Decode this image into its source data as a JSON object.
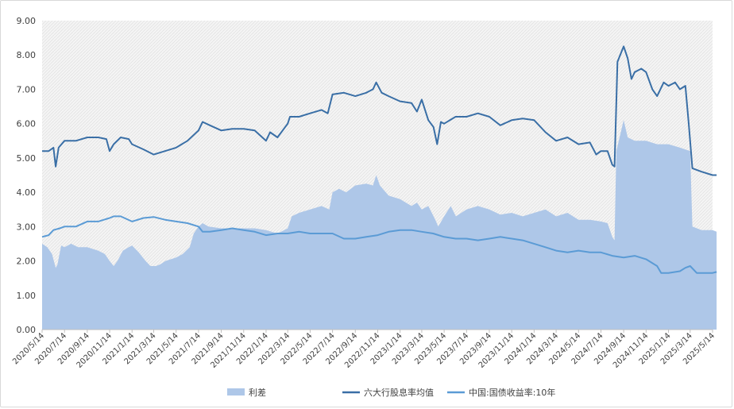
{
  "chart_data": {
    "type": "area+line",
    "title": "",
    "xlabel": "",
    "ylabel": "",
    "ylim": [
      0,
      9
    ],
    "yticks": [
      "0.00",
      "1.00",
      "2.00",
      "3.00",
      "4.00",
      "5.00",
      "6.00",
      "7.00",
      "8.00",
      "9.00"
    ],
    "xticks": [
      "2020/5/14",
      "2020/7/14",
      "2020/9/14",
      "2020/11/14",
      "2021/1/14",
      "2021/3/14",
      "2021/5/14",
      "2021/7/14",
      "2021/9/14",
      "2021/11/14",
      "2022/1/14",
      "2022/3/14",
      "2022/5/14",
      "2022/7/14",
      "2022/9/14",
      "2022/11/14",
      "2023/1/14",
      "2023/3/14",
      "2023/5/14",
      "2023/7/14",
      "2023/9/14",
      "2023/11/14",
      "2024/1/14",
      "2024/3/14",
      "2024/5/14",
      "2024/7/14",
      "2024/9/14",
      "2024/11/14",
      "2025/1/14",
      "2025/3/14",
      "2025/5/14"
    ],
    "grid": false,
    "plot_background": "hatched light gray",
    "legend_position": "bottom",
    "series": [
      {
        "name": "利差",
        "kind": "area",
        "color": "#aec7e8",
        "points": [
          [
            "2020/5/14",
            2.5
          ],
          [
            "2020/5/28",
            2.4
          ],
          [
            "2020/6/10",
            2.2
          ],
          [
            "2020/6/20",
            1.8
          ],
          [
            "2020/6/25",
            1.9
          ],
          [
            "2020/7/5",
            2.45
          ],
          [
            "2020/7/14",
            2.4
          ],
          [
            "2020/8/1",
            2.5
          ],
          [
            "2020/8/20",
            2.4
          ],
          [
            "2020/9/14",
            2.4
          ],
          [
            "2020/10/14",
            2.3
          ],
          [
            "2020/11/1",
            2.2
          ],
          [
            "2020/11/14",
            2.0
          ],
          [
            "2020/11/25",
            1.85
          ],
          [
            "2020/12/5",
            2.0
          ],
          [
            "2020/12/20",
            2.3
          ],
          [
            "2021/1/5",
            2.4
          ],
          [
            "2021/1/14",
            2.45
          ],
          [
            "2021/2/1",
            2.25
          ],
          [
            "2021/2/20",
            2.0
          ],
          [
            "2021/3/5",
            1.85
          ],
          [
            "2021/3/20",
            1.85
          ],
          [
            "2021/4/1",
            1.9
          ],
          [
            "2021/4/15",
            2.0
          ],
          [
            "2021/5/14",
            2.1
          ],
          [
            "2021/6/1",
            2.2
          ],
          [
            "2021/6/20",
            2.4
          ],
          [
            "2021/7/1",
            2.8
          ],
          [
            "2021/7/14",
            3.0
          ],
          [
            "2021/7/25",
            3.1
          ],
          [
            "2021/8/10",
            3.0
          ],
          [
            "2021/9/14",
            2.95
          ],
          [
            "2021/10/14",
            2.95
          ],
          [
            "2021/11/14",
            2.95
          ],
          [
            "2021/12/14",
            2.95
          ],
          [
            "2022/1/14",
            2.9
          ],
          [
            "2022/2/14",
            2.8
          ],
          [
            "2022/3/14",
            2.95
          ],
          [
            "2022/3/25",
            3.3
          ],
          [
            "2022/4/14",
            3.4
          ],
          [
            "2022/5/14",
            3.5
          ],
          [
            "2022/6/14",
            3.6
          ],
          [
            "2022/7/5",
            3.5
          ],
          [
            "2022/7/14",
            4.0
          ],
          [
            "2022/8/1",
            4.1
          ],
          [
            "2022/8/20",
            4.0
          ],
          [
            "2022/9/14",
            4.2
          ],
          [
            "2022/10/14",
            4.25
          ],
          [
            "2022/11/1",
            4.2
          ],
          [
            "2022/11/10",
            4.5
          ],
          [
            "2022/11/20",
            4.2
          ],
          [
            "2022/12/14",
            3.9
          ],
          [
            "2023/1/14",
            3.8
          ],
          [
            "2023/2/14",
            3.6
          ],
          [
            "2023/3/1",
            3.7
          ],
          [
            "2023/3/14",
            3.5
          ],
          [
            "2023/4/1",
            3.6
          ],
          [
            "2023/4/20",
            3.2
          ],
          [
            "2023/4/28",
            3.0
          ],
          [
            "2023/5/14",
            3.3
          ],
          [
            "2023/6/1",
            3.6
          ],
          [
            "2023/6/15",
            3.3
          ],
          [
            "2023/7/14",
            3.5
          ],
          [
            "2023/8/14",
            3.6
          ],
          [
            "2023/9/14",
            3.5
          ],
          [
            "2023/10/14",
            3.35
          ],
          [
            "2023/11/14",
            3.4
          ],
          [
            "2023/12/14",
            3.3
          ],
          [
            "2024/1/14",
            3.4
          ],
          [
            "2024/2/14",
            3.5
          ],
          [
            "2024/3/14",
            3.3
          ],
          [
            "2024/4/14",
            3.4
          ],
          [
            "2024/5/14",
            3.2
          ],
          [
            "2024/6/14",
            3.2
          ],
          [
            "2024/7/14",
            3.15
          ],
          [
            "2024/8/1",
            3.1
          ],
          [
            "2024/8/14",
            2.7
          ],
          [
            "2024/8/20",
            2.6
          ],
          [
            "2024/8/25",
            5.2
          ],
          [
            "2024/9/14",
            6.1
          ],
          [
            "2024/9/25",
            5.6
          ],
          [
            "2024/10/14",
            5.5
          ],
          [
            "2024/11/14",
            5.5
          ],
          [
            "2024/12/14",
            5.4
          ],
          [
            "2025/1/14",
            5.4
          ],
          [
            "2025/2/14",
            5.3
          ],
          [
            "2025/3/14",
            5.2
          ],
          [
            "2025/3/20",
            3.0
          ],
          [
            "2025/4/14",
            2.9
          ],
          [
            "2025/5/14",
            2.9
          ],
          [
            "2025/5/25",
            2.85
          ]
        ]
      },
      {
        "name": "六大行股息率均值",
        "kind": "line",
        "color": "#3a6fa6",
        "points": [
          [
            "2020/5/14",
            5.2
          ],
          [
            "2020/6/1",
            5.2
          ],
          [
            "2020/6/14",
            5.3
          ],
          [
            "2020/6/20",
            4.75
          ],
          [
            "2020/6/28",
            5.3
          ],
          [
            "2020/7/14",
            5.5
          ],
          [
            "2020/8/14",
            5.5
          ],
          [
            "2020/9/14",
            5.6
          ],
          [
            "2020/10/14",
            5.6
          ],
          [
            "2020/11/5",
            5.55
          ],
          [
            "2020/11/14",
            5.2
          ],
          [
            "2020/11/25",
            5.4
          ],
          [
            "2020/12/14",
            5.6
          ],
          [
            "2021/1/5",
            5.55
          ],
          [
            "2021/1/14",
            5.4
          ],
          [
            "2021/2/14",
            5.25
          ],
          [
            "2021/3/14",
            5.1
          ],
          [
            "2021/4/14",
            5.2
          ],
          [
            "2021/5/14",
            5.3
          ],
          [
            "2021/6/14",
            5.5
          ],
          [
            "2021/7/14",
            5.8
          ],
          [
            "2021/7/25",
            6.05
          ],
          [
            "2021/8/14",
            5.95
          ],
          [
            "2021/9/14",
            5.8
          ],
          [
            "2021/10/14",
            5.85
          ],
          [
            "2021/11/14",
            5.85
          ],
          [
            "2021/12/14",
            5.8
          ],
          [
            "2022/1/14",
            5.5
          ],
          [
            "2022/1/25",
            5.75
          ],
          [
            "2022/2/14",
            5.6
          ],
          [
            "2022/3/14",
            6.0
          ],
          [
            "2022/3/20",
            6.2
          ],
          [
            "2022/4/14",
            6.2
          ],
          [
            "2022/5/14",
            6.3
          ],
          [
            "2022/6/14",
            6.4
          ],
          [
            "2022/7/1",
            6.3
          ],
          [
            "2022/7/14",
            6.85
          ],
          [
            "2022/8/14",
            6.9
          ],
          [
            "2022/9/14",
            6.8
          ],
          [
            "2022/10/14",
            6.9
          ],
          [
            "2022/11/1",
            7.0
          ],
          [
            "2022/11/10",
            7.2
          ],
          [
            "2022/11/25",
            6.9
          ],
          [
            "2022/12/14",
            6.8
          ],
          [
            "2023/1/14",
            6.65
          ],
          [
            "2023/2/14",
            6.6
          ],
          [
            "2023/3/1",
            6.35
          ],
          [
            "2023/3/14",
            6.7
          ],
          [
            "2023/4/1",
            6.1
          ],
          [
            "2023/4/15",
            5.9
          ],
          [
            "2023/4/25",
            5.4
          ],
          [
            "2023/5/5",
            6.05
          ],
          [
            "2023/5/14",
            6.0
          ],
          [
            "2023/6/14",
            6.2
          ],
          [
            "2023/7/14",
            6.2
          ],
          [
            "2023/8/14",
            6.3
          ],
          [
            "2023/9/14",
            6.2
          ],
          [
            "2023/10/14",
            5.95
          ],
          [
            "2023/11/14",
            6.1
          ],
          [
            "2023/12/14",
            6.15
          ],
          [
            "2024/1/14",
            6.1
          ],
          [
            "2024/2/14",
            5.75
          ],
          [
            "2024/3/14",
            5.5
          ],
          [
            "2024/4/14",
            5.6
          ],
          [
            "2024/5/14",
            5.4
          ],
          [
            "2024/6/14",
            5.45
          ],
          [
            "2024/7/1",
            5.1
          ],
          [
            "2024/7/14",
            5.2
          ],
          [
            "2024/8/1",
            5.2
          ],
          [
            "2024/8/14",
            4.8
          ],
          [
            "2024/8/20",
            4.75
          ],
          [
            "2024/8/28",
            7.8
          ],
          [
            "2024/9/14",
            8.25
          ],
          [
            "2024/9/25",
            7.9
          ],
          [
            "2024/10/5",
            7.3
          ],
          [
            "2024/10/14",
            7.5
          ],
          [
            "2024/11/1",
            7.6
          ],
          [
            "2024/11/14",
            7.5
          ],
          [
            "2024/12/1",
            7.0
          ],
          [
            "2024/12/14",
            6.8
          ],
          [
            "2025/1/1",
            7.2
          ],
          [
            "2025/1/14",
            7.1
          ],
          [
            "2025/2/1",
            7.2
          ],
          [
            "2025/2/14",
            7.0
          ],
          [
            "2025/3/1",
            7.1
          ],
          [
            "2025/3/10",
            6.0
          ],
          [
            "2025/3/20",
            4.7
          ],
          [
            "2025/4/14",
            4.6
          ],
          [
            "2025/5/14",
            4.5
          ],
          [
            "2025/5/25",
            4.5
          ]
        ]
      },
      {
        "name": "中国:国债收益率:10年",
        "kind": "line",
        "color": "#5b9bd5",
        "points": [
          [
            "2020/5/14",
            2.7
          ],
          [
            "2020/6/1",
            2.75
          ],
          [
            "2020/6/14",
            2.9
          ],
          [
            "2020/7/1",
            2.95
          ],
          [
            "2020/7/14",
            3.0
          ],
          [
            "2020/8/14",
            3.0
          ],
          [
            "2020/9/14",
            3.15
          ],
          [
            "2020/10/14",
            3.15
          ],
          [
            "2020/11/14",
            3.25
          ],
          [
            "2020/11/25",
            3.3
          ],
          [
            "2020/12/14",
            3.3
          ],
          [
            "2021/1/14",
            3.15
          ],
          [
            "2021/2/14",
            3.25
          ],
          [
            "2021/3/14",
            3.28
          ],
          [
            "2021/4/14",
            3.2
          ],
          [
            "2021/5/14",
            3.15
          ],
          [
            "2021/6/14",
            3.1
          ],
          [
            "2021/7/14",
            3.0
          ],
          [
            "2021/7/25",
            2.85
          ],
          [
            "2021/8/14",
            2.85
          ],
          [
            "2021/9/14",
            2.9
          ],
          [
            "2021/10/14",
            2.95
          ],
          [
            "2021/11/14",
            2.9
          ],
          [
            "2021/12/14",
            2.85
          ],
          [
            "2022/1/14",
            2.75
          ],
          [
            "2022/2/14",
            2.8
          ],
          [
            "2022/3/14",
            2.8
          ],
          [
            "2022/4/14",
            2.85
          ],
          [
            "2022/5/14",
            2.8
          ],
          [
            "2022/6/14",
            2.8
          ],
          [
            "2022/7/14",
            2.8
          ],
          [
            "2022/8/14",
            2.65
          ],
          [
            "2022/9/14",
            2.65
          ],
          [
            "2022/10/14",
            2.7
          ],
          [
            "2022/11/14",
            2.75
          ],
          [
            "2022/12/14",
            2.85
          ],
          [
            "2023/1/14",
            2.9
          ],
          [
            "2023/2/14",
            2.9
          ],
          [
            "2023/3/14",
            2.85
          ],
          [
            "2023/4/14",
            2.8
          ],
          [
            "2023/5/14",
            2.7
          ],
          [
            "2023/6/14",
            2.65
          ],
          [
            "2023/7/14",
            2.65
          ],
          [
            "2023/8/14",
            2.6
          ],
          [
            "2023/9/14",
            2.65
          ],
          [
            "2023/10/14",
            2.7
          ],
          [
            "2023/11/14",
            2.65
          ],
          [
            "2023/12/14",
            2.6
          ],
          [
            "2024/1/14",
            2.5
          ],
          [
            "2024/2/14",
            2.4
          ],
          [
            "2024/3/14",
            2.3
          ],
          [
            "2024/4/14",
            2.25
          ],
          [
            "2024/5/14",
            2.3
          ],
          [
            "2024/6/14",
            2.25
          ],
          [
            "2024/7/14",
            2.25
          ],
          [
            "2024/8/14",
            2.15
          ],
          [
            "2024/9/14",
            2.1
          ],
          [
            "2024/10/14",
            2.15
          ],
          [
            "2024/11/14",
            2.05
          ],
          [
            "2024/12/14",
            1.85
          ],
          [
            "2024/12/25",
            1.65
          ],
          [
            "2025/1/14",
            1.65
          ],
          [
            "2025/2/14",
            1.7
          ],
          [
            "2025/3/1",
            1.8
          ],
          [
            "2025/3/14",
            1.85
          ],
          [
            "2025/4/1",
            1.65
          ],
          [
            "2025/4/14",
            1.65
          ],
          [
            "2025/5/14",
            1.65
          ],
          [
            "2025/5/25",
            1.68
          ]
        ]
      }
    ]
  }
}
